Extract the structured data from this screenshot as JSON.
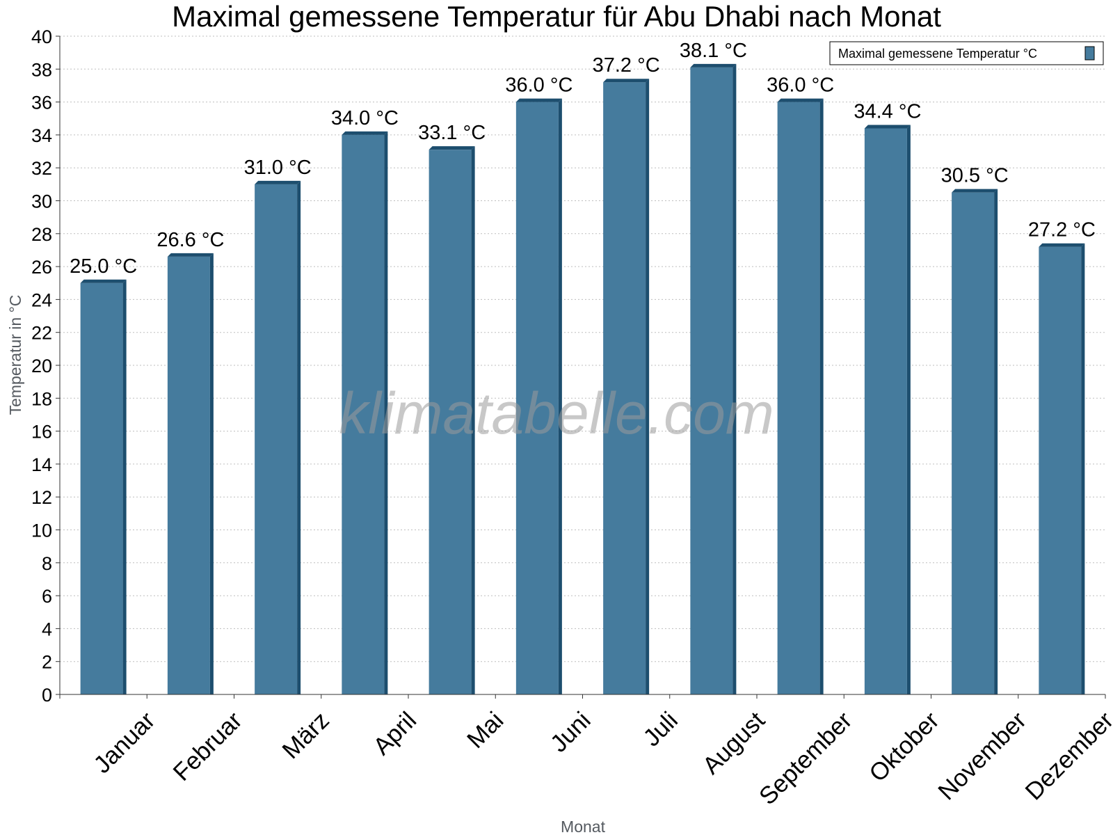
{
  "colors": {
    "bar_front": "#457b9d",
    "bar_side": "#1d4e6e",
    "bar_top": "#1d4e6e",
    "grid": "#bdbdbd",
    "axis": "#333333"
  },
  "watermark": "klimatabelle.com",
  "chart_data": {
    "type": "bar",
    "title": "Maximal gemessene Temperatur für Abu Dhabi nach Monat",
    "xlabel": "Monat",
    "ylabel": "Temperatur in °C",
    "ylim": [
      0,
      40
    ],
    "ytick_step": 2,
    "grid": true,
    "legend_position": "top-right",
    "categories": [
      "Januar",
      "Februar",
      "März",
      "April",
      "Mai",
      "Juni",
      "Juli",
      "August",
      "September",
      "Oktober",
      "November",
      "Dezember"
    ],
    "series": [
      {
        "name": "Maximal gemessene Temperatur °C",
        "values": [
          25.0,
          26.6,
          31.0,
          34.0,
          33.1,
          36.0,
          37.2,
          38.1,
          36.0,
          34.4,
          30.5,
          27.2
        ],
        "labels": [
          "25.0 °C",
          "26.6 °C",
          "31.0 °C",
          "34.0 °C",
          "33.1 °C",
          "36.0 °C",
          "37.2 °C",
          "38.1 °C",
          "36.0 °C",
          "34.4 °C",
          "30.5 °C",
          "27.2 °C"
        ]
      }
    ]
  }
}
